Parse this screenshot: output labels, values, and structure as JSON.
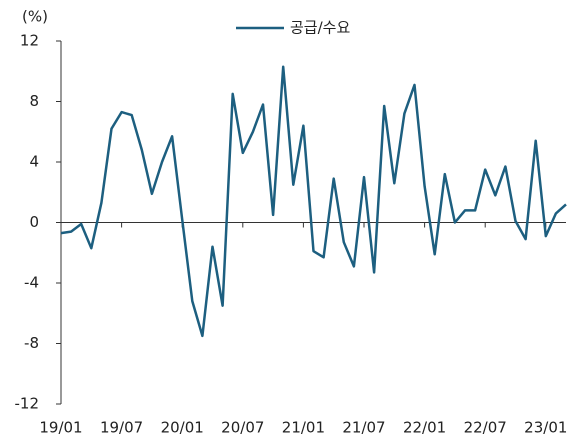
{
  "chart_data": {
    "type": "line",
    "y_unit": "(%)",
    "categories": [
      "19/01",
      null,
      null,
      null,
      null,
      null,
      "19/07",
      null,
      null,
      null,
      null,
      null,
      "20/01",
      null,
      null,
      null,
      null,
      null,
      "20/07",
      null,
      null,
      null,
      null,
      null,
      "21/01",
      null,
      null,
      null,
      null,
      null,
      "21/07",
      null,
      null,
      null,
      null,
      null,
      "22/01",
      null,
      null,
      null,
      null,
      null,
      "22/07",
      null,
      null,
      null,
      null,
      null,
      "23/01",
      null,
      null
    ],
    "series": [
      {
        "name": "공급/수요",
        "color": "#1d5f80",
        "values": [
          -0.7,
          -0.6,
          -0.1,
          -1.7,
          1.3,
          6.2,
          7.3,
          7.1,
          4.8,
          1.9,
          4.0,
          5.7,
          0.2,
          -5.2,
          -7.5,
          -1.6,
          -5.5,
          8.5,
          4.6,
          6.0,
          7.8,
          0.5,
          10.3,
          2.5,
          6.4,
          -1.9,
          -2.3,
          2.9,
          -1.3,
          -2.9,
          3.0,
          -3.3,
          7.7,
          2.6,
          7.2,
          9.1,
          2.4,
          -2.1,
          3.2,
          0.0,
          0.8,
          0.8,
          3.5,
          1.8,
          3.7,
          0.1,
          -1.1,
          5.4,
          -0.9,
          0.6,
          1.2
        ]
      }
    ],
    "ylim": [
      -12,
      12
    ],
    "yticks": [
      -12,
      -8,
      -4,
      0,
      4,
      8,
      12
    ],
    "legend": "top"
  }
}
